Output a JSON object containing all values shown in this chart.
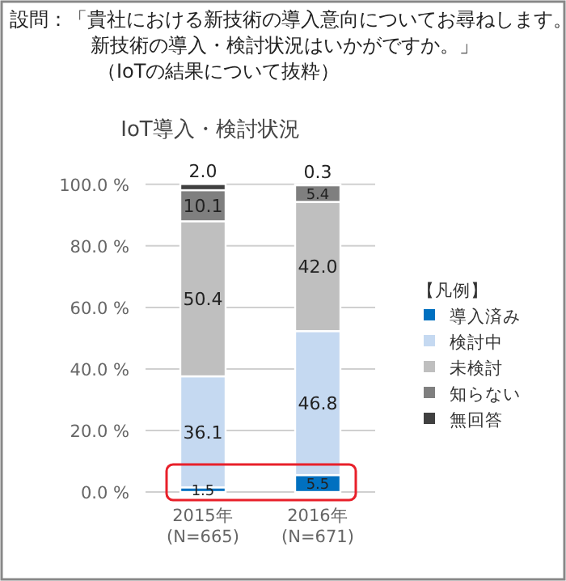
{
  "chart_data": {
    "type": "bar",
    "stacked": true,
    "title": "IoT導入・検討状況",
    "annotations": [
      "設問：「貴社における新技術の導入意向についてお尋ねします。",
      "新技術の導入・検討状況はいかがですか。」",
      "（IoTの結果について抜粋）"
    ],
    "categories": [
      "2015年\n(N=665)",
      "2016年\n(N=671)"
    ],
    "series": [
      {
        "name": "導入済み",
        "color": "#0070c0",
        "values": [
          1.5,
          5.5
        ],
        "value_labels": [
          "1.5",
          "5.5"
        ]
      },
      {
        "name": "検討中",
        "color": "#c5d9f1",
        "values": [
          36.1,
          46.8
        ],
        "value_labels": [
          "36.1",
          "46.8"
        ]
      },
      {
        "name": "未検討",
        "color": "#bfbfbf",
        "values": [
          50.4,
          42.0
        ],
        "value_labels": [
          "50.4",
          "42.0"
        ]
      },
      {
        "name": "知らない",
        "color": "#7f7f7f",
        "values": [
          10.1,
          5.4
        ],
        "value_labels": [
          "10.1",
          "5.4"
        ]
      },
      {
        "name": "無回答",
        "color": "#404040",
        "values": [
          2.0,
          0.3
        ],
        "value_labels": [
          "2.0",
          "0.3"
        ]
      }
    ],
    "legend_title": "【凡例】",
    "legend": "right",
    "grid": "y",
    "ylim": [
      0,
      101
    ],
    "yticks": [
      {
        "value": 0,
        "label": "0.0 %"
      },
      {
        "value": 20,
        "label": "20.0 %"
      },
      {
        "value": 40,
        "label": "40.0 %"
      },
      {
        "value": 60,
        "label": "60.0 %"
      },
      {
        "value": 80,
        "label": "80.0 %"
      },
      {
        "value": 100,
        "label": "100.0 %"
      }
    ]
  }
}
